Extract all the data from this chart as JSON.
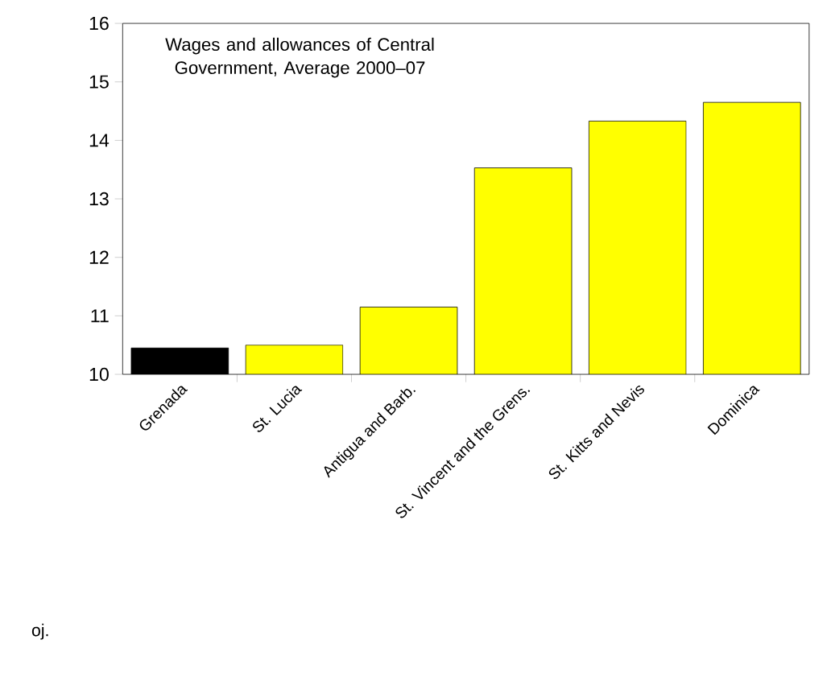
{
  "chart_data": {
    "type": "bar",
    "title": "Wages and allowances of Central Government, Average 2000–07",
    "categories": [
      "Grenada",
      "St. Lucia",
      "Antigua and Barb.",
      "St. Vincent and the Grens.",
      "St. Kitts and Nevis",
      "Dominica"
    ],
    "values": [
      10.45,
      10.5,
      11.15,
      13.53,
      14.33,
      14.65
    ],
    "colors": [
      "#000000",
      "#ffff00",
      "#ffff00",
      "#ffff00",
      "#ffff00",
      "#ffff00"
    ],
    "ylim": [
      10,
      16
    ],
    "yticks": [
      10,
      11,
      12,
      13,
      14,
      15,
      16
    ],
    "grid": false,
    "annotations": [
      "oj."
    ]
  }
}
